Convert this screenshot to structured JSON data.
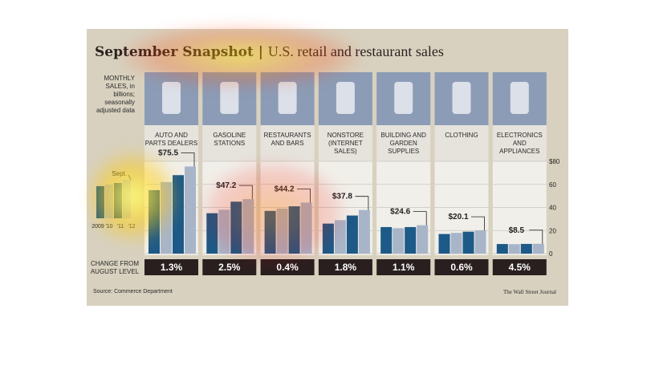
{
  "chart_data": {
    "type": "bar",
    "title": "September Snapshot",
    "subtitle": "U.S. retail and restaurant sales",
    "y_label": "MONTHLY SALES, in billions; seasonally adjusted data",
    "legend_point": "Sept.",
    "periods": [
      "2009",
      "'10",
      "'11",
      "'12"
    ],
    "colors": [
      "#1d5a87",
      "#a8b5c9"
    ],
    "ylim": [
      0,
      80
    ],
    "yticks": [
      {
        "value": 80,
        "label": "$80"
      },
      60,
      40,
      20,
      0
    ],
    "grid": true,
    "series": [
      {
        "name": "AUTO AND PARTS DEALERS",
        "values": [
          55,
          62,
          68,
          75.5
        ],
        "value_labels": [
          null,
          null,
          null,
          "$75.5"
        ]
      },
      {
        "name": "GASOLINE STATIONS",
        "values": [
          35,
          38,
          45,
          47.2
        ],
        "value_labels": [
          null,
          null,
          null,
          "$47.2"
        ]
      },
      {
        "name": "RESTAURANTS AND BARS",
        "values": [
          37,
          39,
          41,
          44.2
        ],
        "value_labels": [
          null,
          null,
          null,
          "$44.2"
        ]
      },
      {
        "name": "NONSTORE (INTERNET SALES)",
        "values": [
          26,
          29,
          33,
          37.8
        ],
        "value_labels": [
          null,
          null,
          null,
          "$37.8"
        ]
      },
      {
        "name": "BUILDING AND GARDEN SUPPLIES",
        "values": [
          23,
          22,
          23,
          24.6
        ],
        "value_labels": [
          null,
          null,
          null,
          "$24.6"
        ]
      },
      {
        "name": "CLOTHING",
        "values": [
          17,
          18,
          19,
          20.1
        ],
        "value_labels": [
          null,
          null,
          null,
          "$20.1"
        ]
      },
      {
        "name": "ELECTRONICS AND APPLIANCES",
        "values": [
          8.3,
          8.2,
          8.4,
          8.5
        ],
        "value_labels": [
          null,
          null,
          null,
          "$8.5"
        ]
      }
    ],
    "change_label": "CHANGE FROM AUGUST LEVEL",
    "changes": [
      1.3,
      2.5,
      0.4,
      1.8,
      1.1,
      0.6,
      4.5
    ],
    "change_labels": [
      "1.3%",
      "2.5%",
      "0.4%",
      "1.8%",
      "1.1%",
      "0.6%",
      "4.5%"
    ],
    "source": "Source: Commerce Department",
    "credit": "The Wall Street Journal"
  }
}
